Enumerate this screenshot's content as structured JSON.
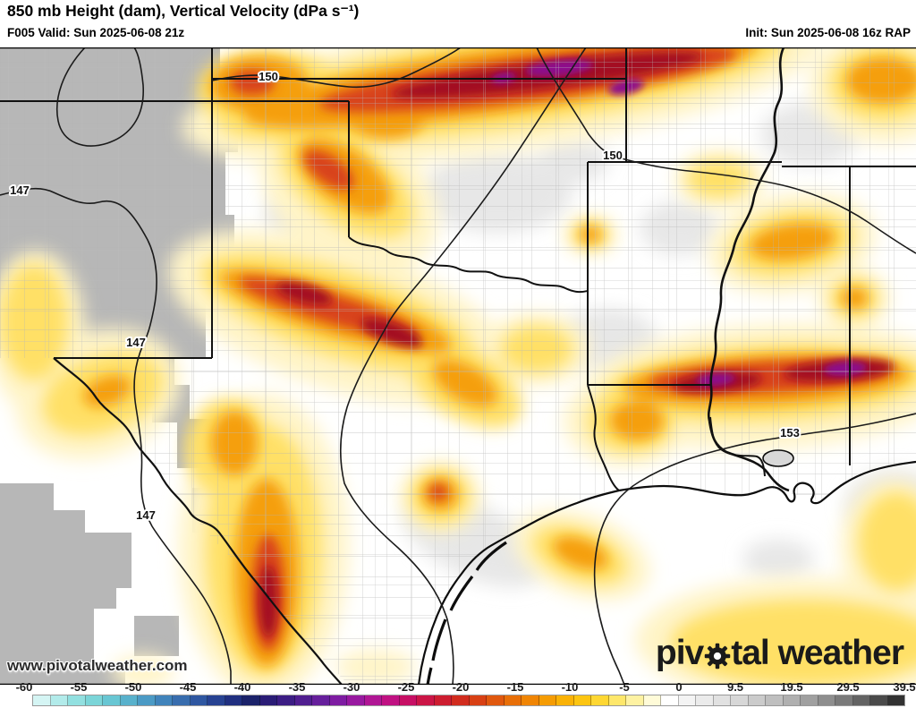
{
  "header": {
    "title": "850 mb Height (dam), Vertical Velocity (dPa s⁻¹)",
    "valid": "F005 Valid: Sun 2025-06-08 21z",
    "init": "Init: Sun 2025-06-08 16z RAP"
  },
  "map": {
    "contour_labels": [
      "150",
      "147",
      "150",
      "147",
      "153",
      "147"
    ],
    "watermark": "www.pivotalweather.com",
    "logo": {
      "prefix": "piv",
      "suffix": "tal weather"
    }
  },
  "colorbar": {
    "ticks": [
      "-60",
      "-55",
      "-50",
      "-45",
      "-40",
      "-35",
      "-30",
      "-25",
      "-20",
      "-15",
      "-10",
      "-5",
      "0",
      "9.5",
      "19.5",
      "29.5",
      "39.5"
    ],
    "cells": [
      "#d5f5f4",
      "#b2ebea",
      "#92e0e0",
      "#7bd5d8",
      "#68c6d3",
      "#58b1cc",
      "#4b9ac5",
      "#4083bb",
      "#386dae",
      "#2f57a1",
      "#274292",
      "#202f80",
      "#1b226a",
      "#2a1c76",
      "#3c1d84",
      "#501e90",
      "#661f9c",
      "#7e1ca2",
      "#9819a0",
      "#b01694",
      "#c01182",
      "#c70f64",
      "#cb1546",
      "#cd1d30",
      "#d12c1e",
      "#d84014",
      "#e0580e",
      "#e86f08",
      "#f08504",
      "#f59c03",
      "#fab206",
      "#fdc511",
      "#fed733",
      "#fee76b",
      "#fef2a2",
      "#fffbd8",
      "#ffffff",
      "#f4f4f4",
      "#ebebeb",
      "#e1e1e1",
      "#d7d7d7",
      "#cbcbcb",
      "#bfbfbf",
      "#b0b0b0",
      "#a0a0a0",
      "#8e8e8e",
      "#7a7a7a",
      "#636363",
      "#4a4a4a",
      "#323232"
    ],
    "accent_colors": {
      "strong_upward": "#8c0f8e",
      "moderate_upward": "#a31020",
      "weak_upward": "#ffe066",
      "downward": "#4a4a4a",
      "masked_terrain": "#b7b7b7"
    }
  }
}
